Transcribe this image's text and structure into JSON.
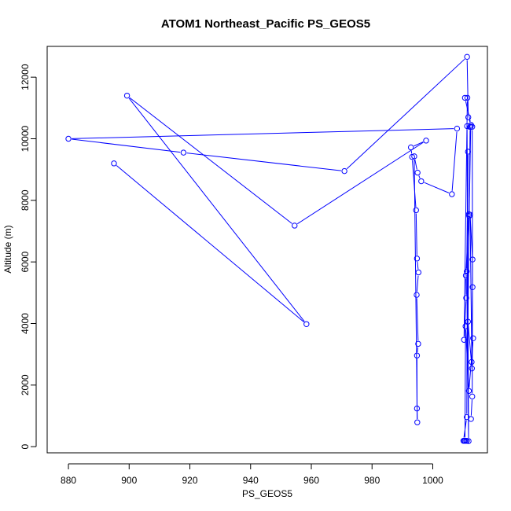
{
  "chart_data": {
    "type": "line",
    "title": "ATOM1 Northeast_Pacific PS_GEOS5",
    "xlabel": "PS_GEOS5",
    "ylabel": "Altitude (m)",
    "xlim": [
      873,
      1018
    ],
    "ylim": [
      -200,
      13000
    ],
    "x_ticks": [
      880,
      900,
      920,
      940,
      960,
      980,
      1000
    ],
    "y_ticks": [
      0,
      2000,
      4000,
      6000,
      8000,
      10000,
      12000
    ],
    "x_tick_labels": [
      "880",
      "900",
      "920",
      "940",
      "960",
      "980",
      "1000"
    ],
    "y_tick_labels": [
      "0",
      "2000",
      "4000",
      "6000",
      "8000",
      "10000",
      "12000"
    ],
    "grid": false,
    "markers": "open-circle",
    "series_color": "#0000ff",
    "series": [
      {
        "x": [
          895.0,
          958.4,
          899.3,
          954.5,
          997.8,
          992.8,
          993.2,
          994.5,
          994.8,
          995.3,
          994.7,
          995.2,
          994.8,
          994.8,
          994.9,
          993.9,
          995.0,
          996.2,
          1006.3,
          1008.0,
          880.0,
          917.9,
          970.9,
          1011.3,
          1011.7,
          1012.6,
          1010.6,
          1011.4,
          1010.3,
          1011.0,
          1010.9,
          1011.9,
          1012.0,
          1012.5,
          1013.0,
          1013.1,
          1012.8,
          1013.3,
          1011.9,
          1010.8,
          1010.6,
          1011.2,
          1011.0,
          1010.3,
          1010.1,
          1011.2,
          1011.6,
          1011.2,
          1011.8,
          1011.3,
          1012.3,
          1011.6,
          1012.9,
          1012.3,
          1013.1,
          1013.0,
          1012.6
        ],
        "y": [
          9200,
          3980,
          11400,
          7180,
          9940,
          9720,
          9410,
          7680,
          6110,
          5660,
          4930,
          3340,
          2960,
          1240,
          790,
          9430,
          8900,
          8620,
          8200,
          10330,
          10000,
          9550,
          8950,
          12660,
          10700,
          10450,
          11330,
          11330,
          3470,
          4830,
          5560,
          7550,
          7490,
          10400,
          10390,
          5180,
          2750,
          3520,
          1810,
          3910,
          190,
          190,
          190,
          190,
          190,
          960,
          9580,
          5690,
          180,
          10410,
          10380,
          4060,
          2540,
          7530,
          6080,
          1630,
          900
        ]
      }
    ]
  }
}
